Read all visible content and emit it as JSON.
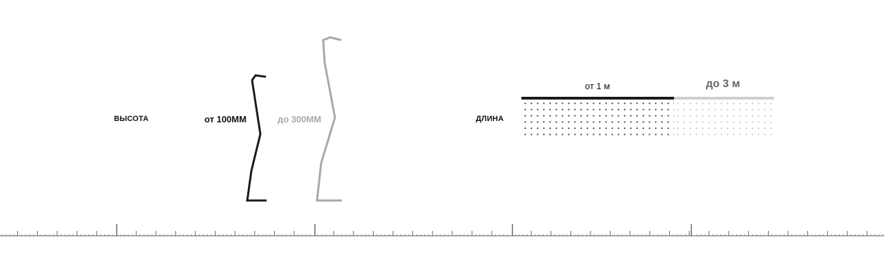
{
  "height": {
    "title": "ВЫСОТА",
    "min_label": "от 100ММ",
    "max_label": "до 300ММ"
  },
  "length": {
    "title": "ДЛИНА",
    "min_label": "от 1 м",
    "max_label": "до 3 м"
  },
  "colors": {
    "primary": "#1a1a1a",
    "secondary": "#a8a8a8",
    "ruler": "#555555"
  }
}
